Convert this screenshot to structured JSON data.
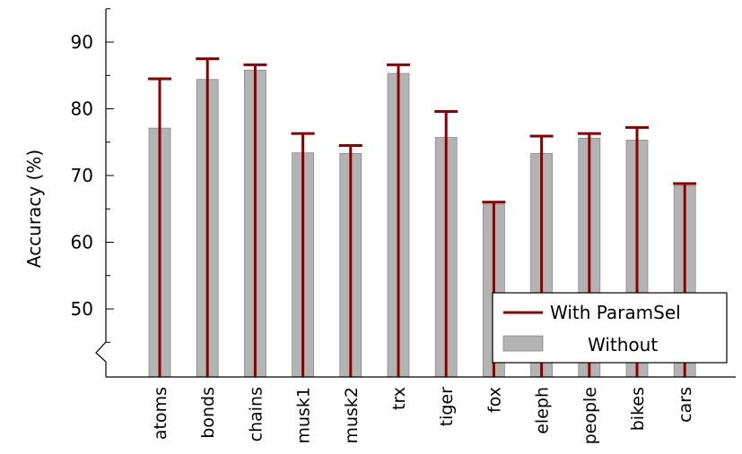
{
  "chart_data": {
    "type": "bar",
    "title": "",
    "xlabel": "",
    "ylabel": "Accuracy (%)",
    "ylim": [
      40,
      95
    ],
    "yticks": [
      50,
      60,
      70,
      80,
      90
    ],
    "y_axis_break": true,
    "grid": false,
    "legend_position": "bottom-right",
    "categories": [
      "atoms",
      "bonds",
      "chains",
      "musk1",
      "musk2",
      "trx",
      "tiger",
      "fox",
      "eleph",
      "people",
      "bikes",
      "cars"
    ],
    "series": [
      {
        "name": "With ParamSel",
        "mark": "line",
        "color": "#8b0000",
        "values": [
          84.5,
          87.5,
          86.6,
          76.3,
          74.5,
          86.6,
          79.6,
          66.0,
          75.9,
          76.3,
          77.2,
          68.8
        ]
      },
      {
        "name": "Without",
        "mark": "bar",
        "color": "#b3b3b3",
        "values": [
          77.1,
          84.4,
          85.8,
          73.4,
          73.3,
          85.3,
          75.7,
          65.7,
          73.3,
          75.6,
          75.3,
          68.5
        ]
      }
    ]
  }
}
